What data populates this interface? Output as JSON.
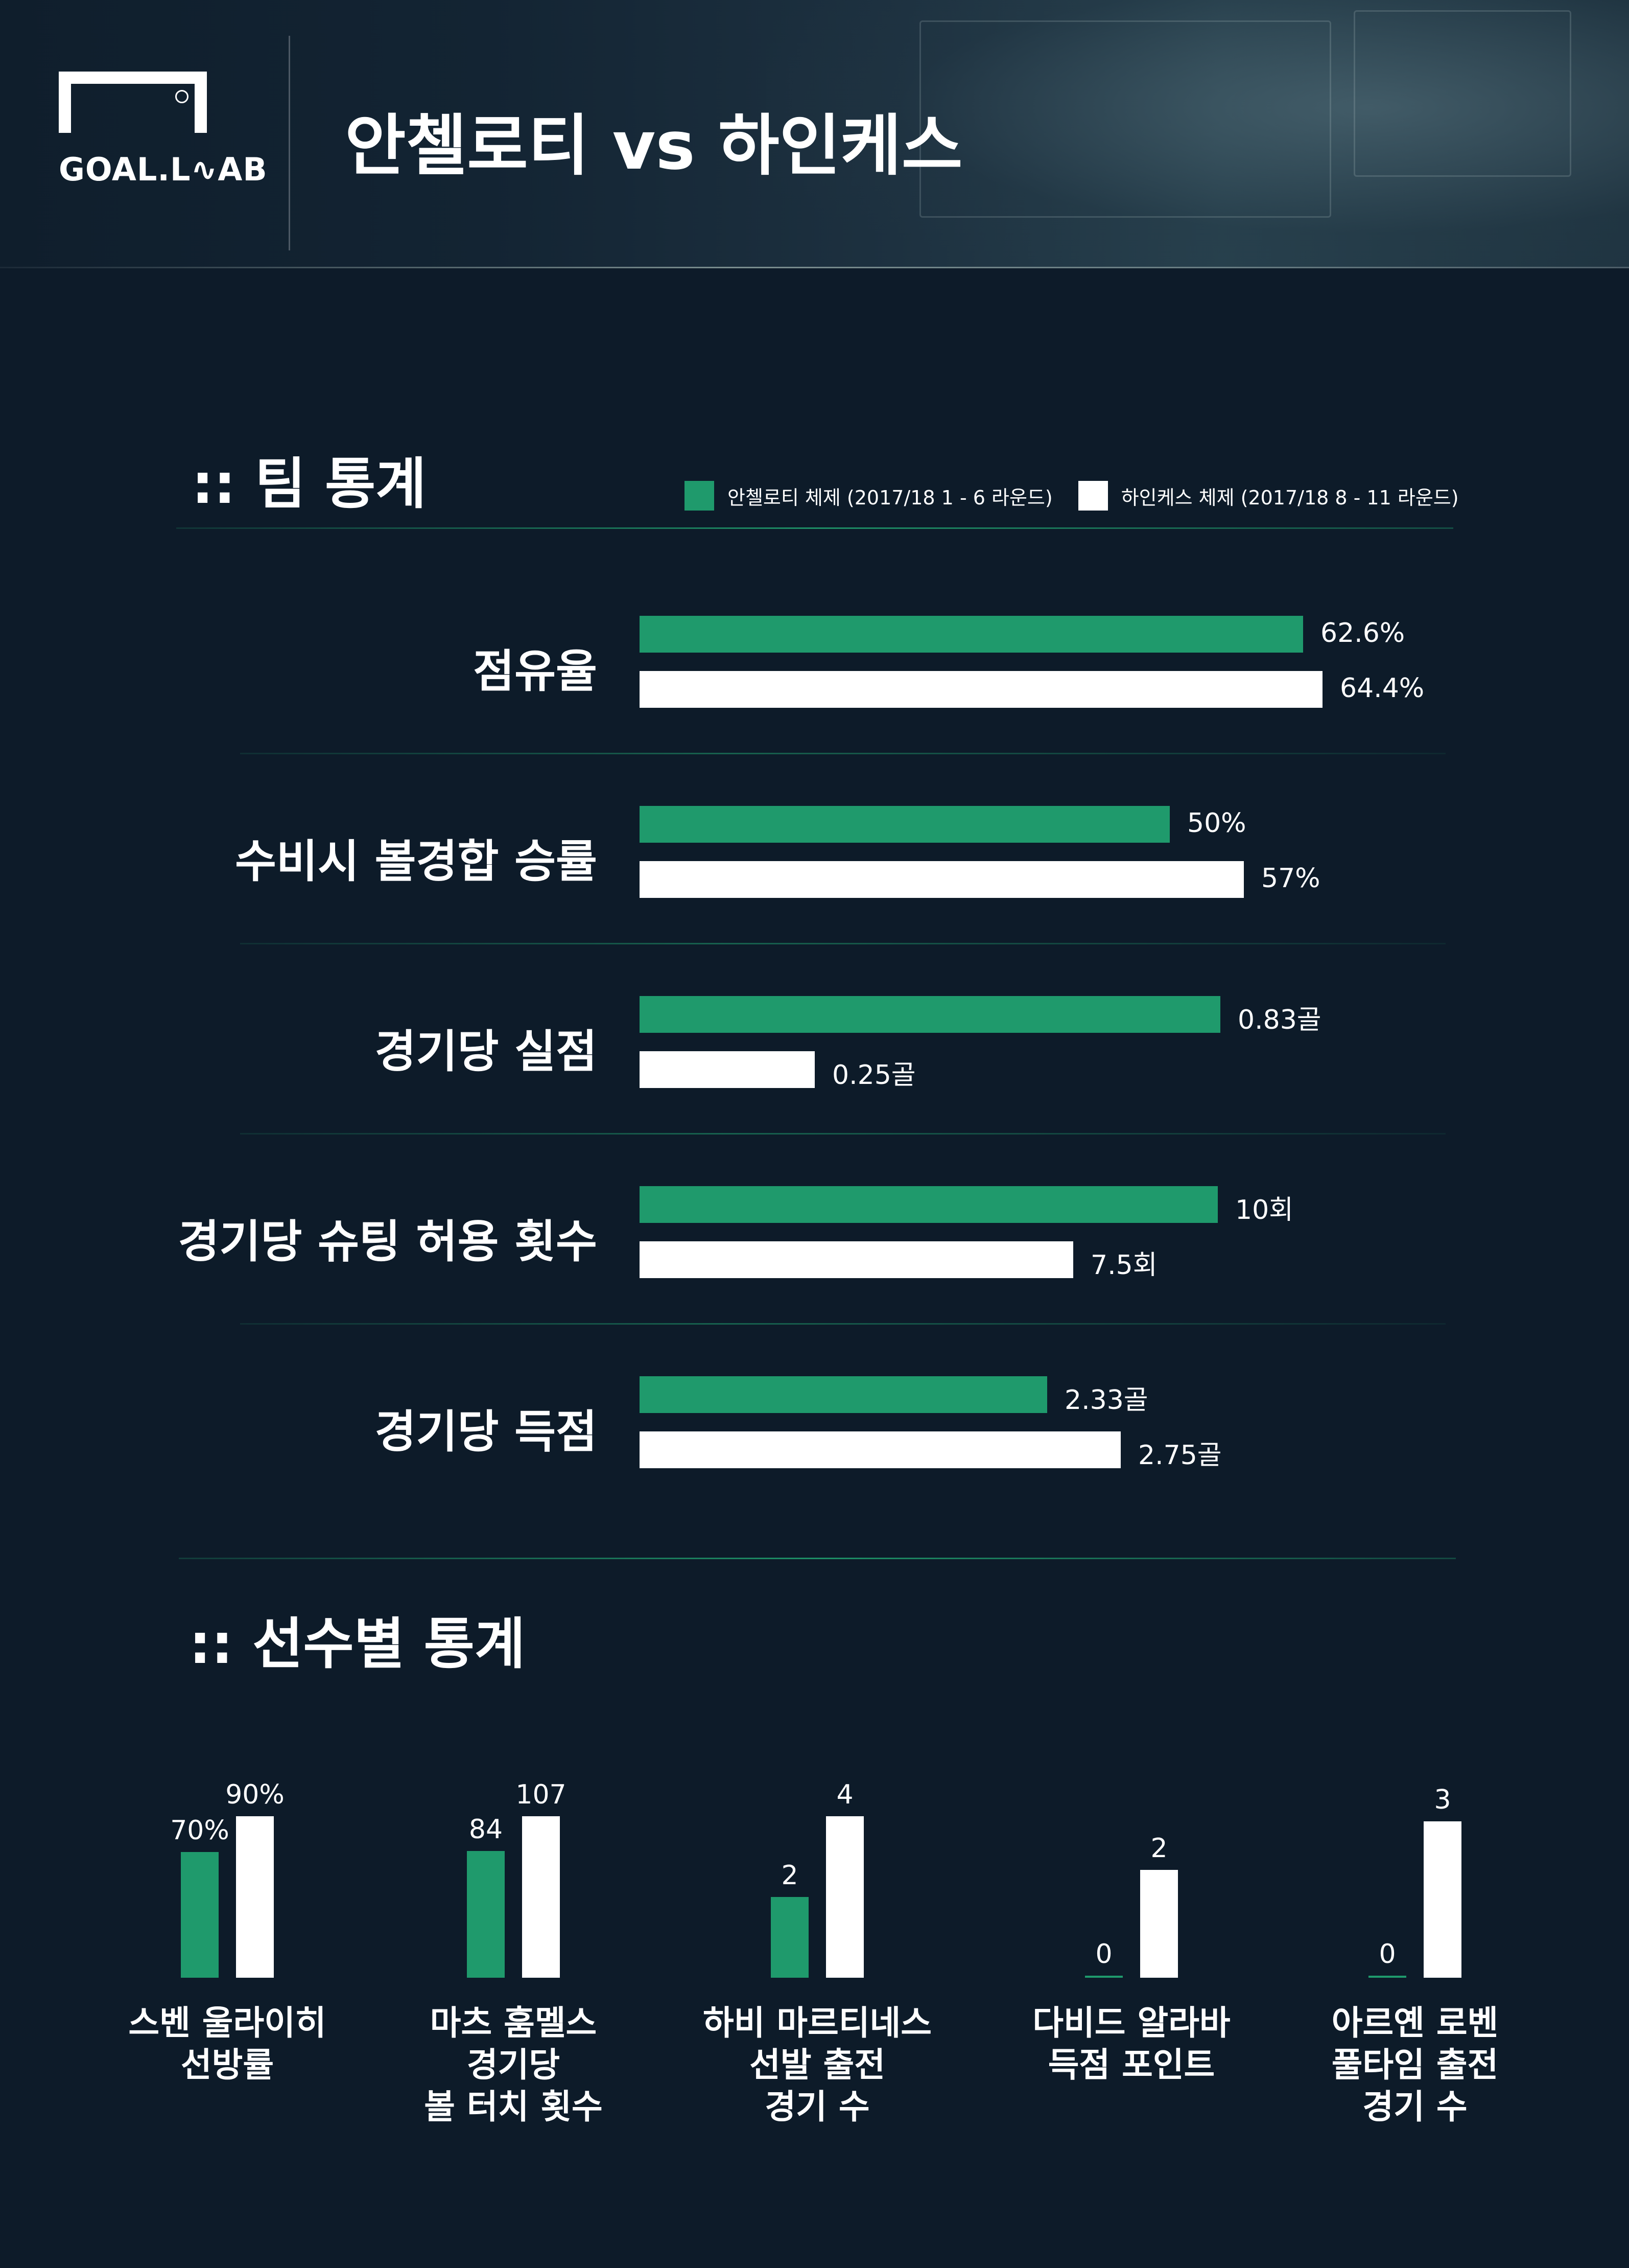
{
  "header": {
    "logo_text": "GOAL.L∿AB",
    "title": "안첼로티 vs 하인케스"
  },
  "colors": {
    "ancelotti": "#1f9a6c",
    "heynckes": "#ffffff",
    "background": "#0d1b29"
  },
  "team_section": {
    "title": ":: 팀 통계",
    "legend": [
      {
        "label": "안첼로티 체제 (2017/18 1 - 6 라운드)",
        "color": "#1f9a6c"
      },
      {
        "label": "하인케스 체제 (2017/18 8 - 11 라운드)",
        "color": "#ffffff"
      }
    ]
  },
  "player_section": {
    "title": ":: 선수별 통계"
  },
  "chart_data": [
    {
      "type": "bar",
      "orientation": "horizontal",
      "series": [
        {
          "name": "안첼로티 체제 (2017/18 1 - 6 라운드)",
          "color": "#1f9a6c",
          "values": [
            62.6,
            50,
            0.83,
            10,
            2.33
          ],
          "labels": [
            "62.6%",
            "50%",
            "0.83골",
            "10회",
            "2.33골"
          ]
        },
        {
          "name": "하인케스 체제 (2017/18 8 - 11 라운드)",
          "color": "#ffffff",
          "values": [
            64.4,
            57,
            0.25,
            7.5,
            2.75
          ],
          "labels": [
            "64.4%",
            "57%",
            "0.25골",
            "7.5회",
            "2.75골"
          ]
        }
      ],
      "categories": [
        "점유율",
        "수비시 볼경합 승률",
        "경기당 실점",
        "경기당 슈팅 허용 횟수",
        "경기당 득점"
      ],
      "xlim_per_category": [
        [
          0,
          66
        ],
        [
          0,
          66
        ],
        [
          0,
          1.0
        ],
        [
          0,
          12.1
        ],
        [
          0,
          4.0
        ]
      ],
      "grid": false
    },
    {
      "type": "bar",
      "orientation": "vertical",
      "categories": [
        [
          "스벤 울라이히",
          "선방률"
        ],
        [
          "마츠 훔멜스",
          "경기당",
          "볼 터치 횟수"
        ],
        [
          "하비 마르티네스",
          "선발 출전",
          "경기 수"
        ],
        [
          "다비드 알라바",
          "득점 포인트"
        ],
        [
          "아르옌 로벤",
          "풀타임 출전",
          "경기 수"
        ]
      ],
      "series": [
        {
          "name": "안첼로티 체제 (2017/18 1 - 6 라운드)",
          "color": "#1f9a6c",
          "values": [
            70,
            84,
            2,
            0,
            0
          ],
          "labels": [
            "70%",
            "84",
            "2",
            "0",
            "0"
          ]
        },
        {
          "name": "하인케스 체제 (2017/18 8 - 11 라운드)",
          "color": "#ffffff",
          "values": [
            90,
            107,
            4,
            2,
            3
          ],
          "labels": [
            "90%",
            "107",
            "4",
            "2",
            "3"
          ]
        }
      ],
      "ylim_per_category": [
        [
          0,
          90
        ],
        [
          0,
          107
        ],
        [
          0,
          4
        ],
        [
          0,
          3
        ],
        [
          0,
          3.1
        ]
      ],
      "grid": false
    }
  ]
}
